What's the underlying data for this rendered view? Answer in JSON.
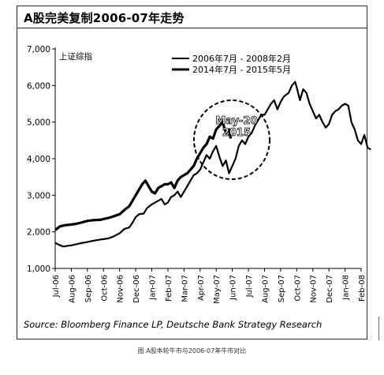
{
  "chart_data": {
    "type": "line",
    "title": "A股完美复制2006-07年走势",
    "ylabel": "上证综指",
    "ylim": [
      1000,
      7000
    ],
    "yticks": [
      "1,000",
      "2,000",
      "3,000",
      "4,000",
      "5,000",
      "6,000",
      "7,000"
    ],
    "categories": [
      "Jul-06",
      "Aug-06",
      "Sep-06",
      "Oct-06",
      "Nov-06",
      "Dec-06",
      "Jan-07",
      "Feb-07",
      "Mar-07",
      "Apr-07",
      "May-07",
      "Jun-07",
      "Jul-07",
      "Aug-07",
      "Sep-07",
      "Oct-07",
      "Nov-07",
      "Dec-07",
      "Jan-08",
      "Feb-08"
    ],
    "grid": false,
    "legend_position": "top",
    "series": [
      {
        "name": "2006年7月 - 2008年2月",
        "color": "#000000",
        "values": [
          [
            0,
            1700
          ],
          [
            0.25,
            1640
          ],
          [
            0.5,
            1600
          ],
          [
            0.8,
            1620
          ],
          [
            1,
            1630
          ],
          [
            1.3,
            1660
          ],
          [
            1.6,
            1690
          ],
          [
            2,
            1720
          ],
          [
            2.4,
            1760
          ],
          [
            2.8,
            1790
          ],
          [
            3,
            1800
          ],
          [
            3.3,
            1820
          ],
          [
            3.6,
            1870
          ],
          [
            4,
            1960
          ],
          [
            4.3,
            2080
          ],
          [
            4.6,
            2120
          ],
          [
            4.8,
            2250
          ],
          [
            5,
            2400
          ],
          [
            5.2,
            2480
          ],
          [
            5.5,
            2500
          ],
          [
            5.7,
            2650
          ],
          [
            6,
            2750
          ],
          [
            6.2,
            2800
          ],
          [
            6.4,
            2850
          ],
          [
            6.6,
            2900
          ],
          [
            6.8,
            2750
          ],
          [
            7,
            2800
          ],
          [
            7.2,
            2950
          ],
          [
            7.4,
            3000
          ],
          [
            7.6,
            3100
          ],
          [
            7.8,
            2950
          ],
          [
            8,
            3100
          ],
          [
            8.2,
            3250
          ],
          [
            8.4,
            3400
          ],
          [
            8.6,
            3550
          ],
          [
            8.8,
            3600
          ],
          [
            9,
            3700
          ],
          [
            9.2,
            3900
          ],
          [
            9.4,
            4100
          ],
          [
            9.6,
            4000
          ],
          [
            9.8,
            4200
          ],
          [
            10,
            4350
          ],
          [
            10.2,
            4050
          ],
          [
            10.4,
            3800
          ],
          [
            10.6,
            3950
          ],
          [
            10.8,
            3600
          ],
          [
            11,
            3800
          ],
          [
            11.2,
            4000
          ],
          [
            11.4,
            4350
          ],
          [
            11.6,
            4500
          ],
          [
            11.8,
            4400
          ],
          [
            12,
            4600
          ],
          [
            12.2,
            4700
          ],
          [
            12.4,
            4900
          ],
          [
            12.6,
            5050
          ],
          [
            12.8,
            5200
          ],
          [
            13,
            5200
          ],
          [
            13.2,
            5350
          ],
          [
            13.4,
            5500
          ],
          [
            13.6,
            5600
          ],
          [
            13.8,
            5350
          ],
          [
            14,
            5550
          ],
          [
            14.2,
            5700
          ],
          [
            14.5,
            5800
          ],
          [
            14.7,
            6000
          ],
          [
            14.9,
            6100
          ],
          [
            15,
            5950
          ],
          [
            15.2,
            5600
          ],
          [
            15.4,
            5900
          ],
          [
            15.6,
            5800
          ],
          [
            15.8,
            5500
          ],
          [
            16,
            5300
          ],
          [
            16.2,
            5100
          ],
          [
            16.4,
            5200
          ],
          [
            16.6,
            5000
          ],
          [
            16.8,
            4850
          ],
          [
            17,
            4950
          ],
          [
            17.2,
            5200
          ],
          [
            17.4,
            5300
          ],
          [
            17.6,
            5350
          ],
          [
            17.8,
            5450
          ],
          [
            18,
            5500
          ],
          [
            18.2,
            5450
          ],
          [
            18.4,
            5000
          ],
          [
            18.6,
            4800
          ],
          [
            18.8,
            4500
          ],
          [
            19,
            4400
          ],
          [
            19.2,
            4650
          ],
          [
            19.4,
            4300
          ],
          [
            19.6,
            4250
          ]
        ]
      },
      {
        "name": "2014年7月 - 2015年5月",
        "color": "#000000",
        "values": [
          [
            0,
            2050
          ],
          [
            0.3,
            2150
          ],
          [
            0.6,
            2180
          ],
          [
            1,
            2200
          ],
          [
            1.3,
            2220
          ],
          [
            1.6,
            2250
          ],
          [
            2,
            2300
          ],
          [
            2.4,
            2320
          ],
          [
            2.8,
            2330
          ],
          [
            3,
            2350
          ],
          [
            3.3,
            2380
          ],
          [
            3.6,
            2420
          ],
          [
            4,
            2480
          ],
          [
            4.3,
            2600
          ],
          [
            4.6,
            2700
          ],
          [
            4.8,
            2850
          ],
          [
            5,
            3000
          ],
          [
            5.2,
            3150
          ],
          [
            5.4,
            3300
          ],
          [
            5.6,
            3400
          ],
          [
            5.8,
            3250
          ],
          [
            6,
            3100
          ],
          [
            6.2,
            3050
          ],
          [
            6.4,
            3200
          ],
          [
            6.6,
            3250
          ],
          [
            6.8,
            3300
          ],
          [
            7,
            3300
          ],
          [
            7.2,
            3350
          ],
          [
            7.4,
            3200
          ],
          [
            7.6,
            3400
          ],
          [
            7.8,
            3500
          ],
          [
            8,
            3550
          ],
          [
            8.2,
            3600
          ],
          [
            8.4,
            3700
          ],
          [
            8.6,
            3800
          ],
          [
            8.8,
            4000
          ],
          [
            9,
            4150
          ],
          [
            9.2,
            4300
          ],
          [
            9.4,
            4400
          ],
          [
            9.6,
            4600
          ],
          [
            9.8,
            4550
          ],
          [
            10,
            4800
          ],
          [
            10.2,
            4900
          ],
          [
            10.4,
            5000
          ],
          [
            10.6,
            4700
          ],
          [
            10.8,
            4800
          ],
          [
            10.9,
            4550
          ]
        ]
      }
    ],
    "annotation": {
      "text_line1": "May-20",
      "text_line2": "2015"
    },
    "source": "Source: Bloomberg Finance LP, Deutsche Bank Strategy Research",
    "caption": "图 A股本轮牛市与2006-07年牛市对比"
  }
}
